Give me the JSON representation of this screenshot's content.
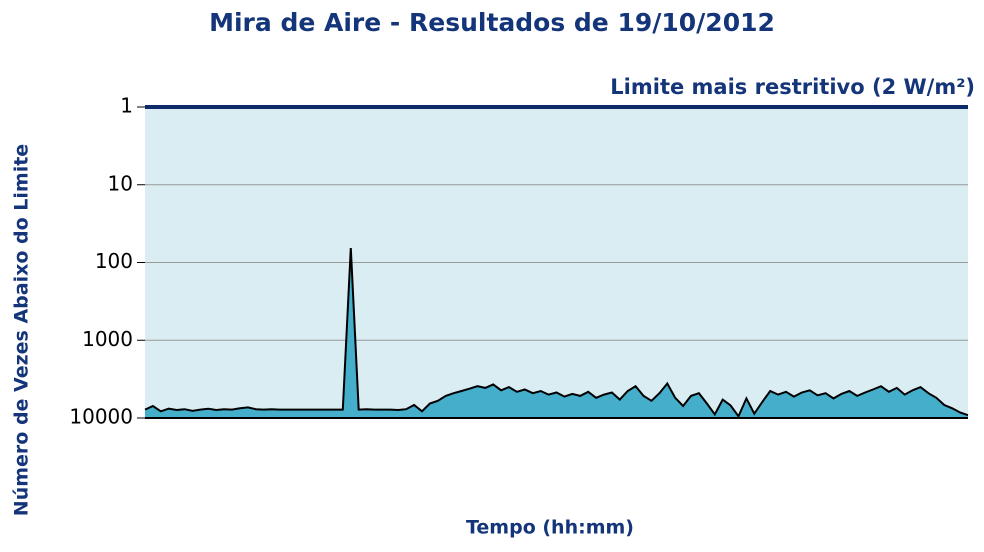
{
  "chart_data": {
    "type": "area",
    "title": "Mira de Aire - Resultados de 19/10/2012",
    "annotation": "Limite mais restritivo (2 W/m²)",
    "xlabel": "Tempo (hh:mm)",
    "ylabel": "Número de Vezes Abaixo do Limite",
    "ylim": [
      1,
      10000
    ],
    "log_y": true,
    "y_reversed": true,
    "yticks": [
      1,
      10,
      100,
      1000,
      10000
    ],
    "grid": true,
    "color": "#45aecb",
    "line_color": "#000000",
    "background": "#d9edf3",
    "limit_color": "#0d2a6b",
    "values": [
      7800,
      7000,
      8200,
      7600,
      7900,
      7700,
      8100,
      7800,
      7600,
      7900,
      7700,
      7800,
      7500,
      7300,
      7700,
      7800,
      7700,
      7800,
      7800,
      7800,
      7800,
      7800,
      7800,
      7800,
      7800,
      7800,
      65,
      7800,
      7700,
      7800,
      7800,
      7800,
      7900,
      7700,
      6800,
      8200,
      6500,
      6000,
      5200,
      4800,
      4500,
      4200,
      3900,
      4100,
      3700,
      4400,
      4000,
      4600,
      4300,
      4800,
      4500,
      5000,
      4700,
      5300,
      4900,
      5200,
      4600,
      5500,
      5000,
      4700,
      5800,
      4500,
      3900,
      5200,
      6000,
      4800,
      3600,
      5500,
      7000,
      5200,
      4800,
      6500,
      9000,
      5800,
      6900,
      9500,
      5600,
      8800,
      6200,
      4500,
      5000,
      4600,
      5300,
      4700,
      4400,
      5100,
      4800,
      5600,
      4900,
      4500,
      5200,
      4700,
      4300,
      3900,
      4600,
      4100,
      5000,
      4400,
      4000,
      4800,
      5500,
      6800,
      7500,
      8500,
      9200
    ]
  }
}
